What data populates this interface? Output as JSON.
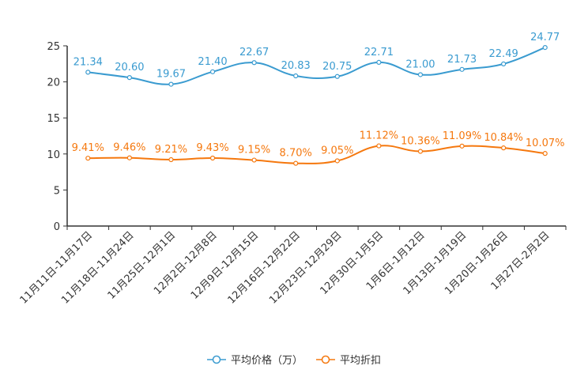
{
  "chart_data": {
    "type": "line",
    "categories": [
      "11月11日-11月17日",
      "11月18日-11月24日",
      "11月25日-12月1日",
      "12月2日-12月8日",
      "12月9日-12月15日",
      "12月16日-12月22日",
      "12月23日-12月29日",
      "12月30日-1月5日",
      "1月6日-1月12日",
      "1月13日-1月19日",
      "1月20日-1月26日",
      "1月27日-2月2日"
    ],
    "series": [
      {
        "name": "平均价格（万）",
        "color": "#3a9bd0",
        "values": [
          21.34,
          20.6,
          19.67,
          21.4,
          22.67,
          20.83,
          20.75,
          22.71,
          21.0,
          21.73,
          22.49,
          24.77
        ],
        "labels": [
          "21.34",
          "20.60",
          "19.67",
          "21.40",
          "22.67",
          "20.83",
          "20.75",
          "22.71",
          "21.00",
          "21.73",
          "22.49",
          "24.77"
        ]
      },
      {
        "name": "平均折扣",
        "color": "#f5780e",
        "values": [
          9.41,
          9.46,
          9.21,
          9.43,
          9.15,
          8.7,
          9.05,
          11.12,
          10.36,
          11.09,
          10.84,
          10.07
        ],
        "labels": [
          "9.41%",
          "9.46%",
          "9.21%",
          "9.43%",
          "9.15%",
          "8.70%",
          "9.05%",
          "11.12%",
          "10.36%",
          "11.09%",
          "10.84%",
          "10.07%"
        ]
      }
    ],
    "ylim": [
      0,
      25
    ],
    "yticks": [
      "0",
      "5",
      "10",
      "15",
      "20",
      "25"
    ],
    "title": "",
    "xlabel": "",
    "ylabel": "",
    "legend_position": "bottom"
  }
}
